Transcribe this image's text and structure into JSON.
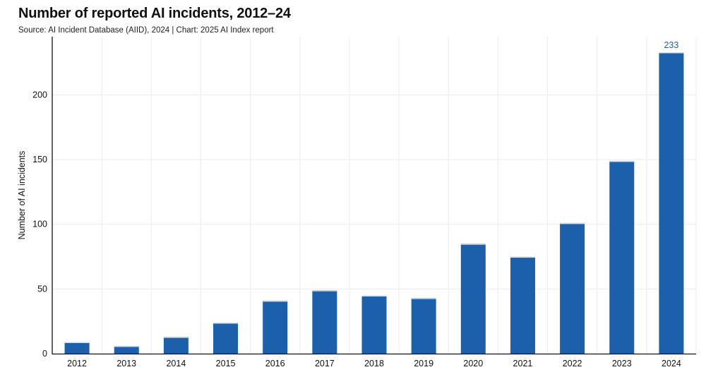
{
  "header": {
    "title": "Number of reported AI incidents, 2012–24",
    "source": "Source: AI Incident Database (AIID), 2024 | Chart: 2025 AI Index report"
  },
  "chart_data": {
    "type": "bar",
    "title": "Number of reported AI incidents, 2012–24",
    "xlabel": "",
    "ylabel": "Number of AI incidents",
    "categories": [
      "2012",
      "2013",
      "2014",
      "2015",
      "2016",
      "2017",
      "2018",
      "2019",
      "2020",
      "2021",
      "2022",
      "2023",
      "2024"
    ],
    "values": [
      9,
      6,
      13,
      24,
      41,
      49,
      45,
      43,
      85,
      75,
      101,
      149,
      233
    ],
    "ylim": [
      0,
      245
    ],
    "yticks": [
      0,
      50,
      100,
      150,
      200
    ],
    "data_labels": [
      {
        "category": "2024",
        "text": "233"
      }
    ],
    "grid": true,
    "colors": {
      "bar": "#1c5fab",
      "bar_top": "#d0e0f0",
      "grid": "#ececec",
      "label": "#1a5fa8"
    }
  }
}
